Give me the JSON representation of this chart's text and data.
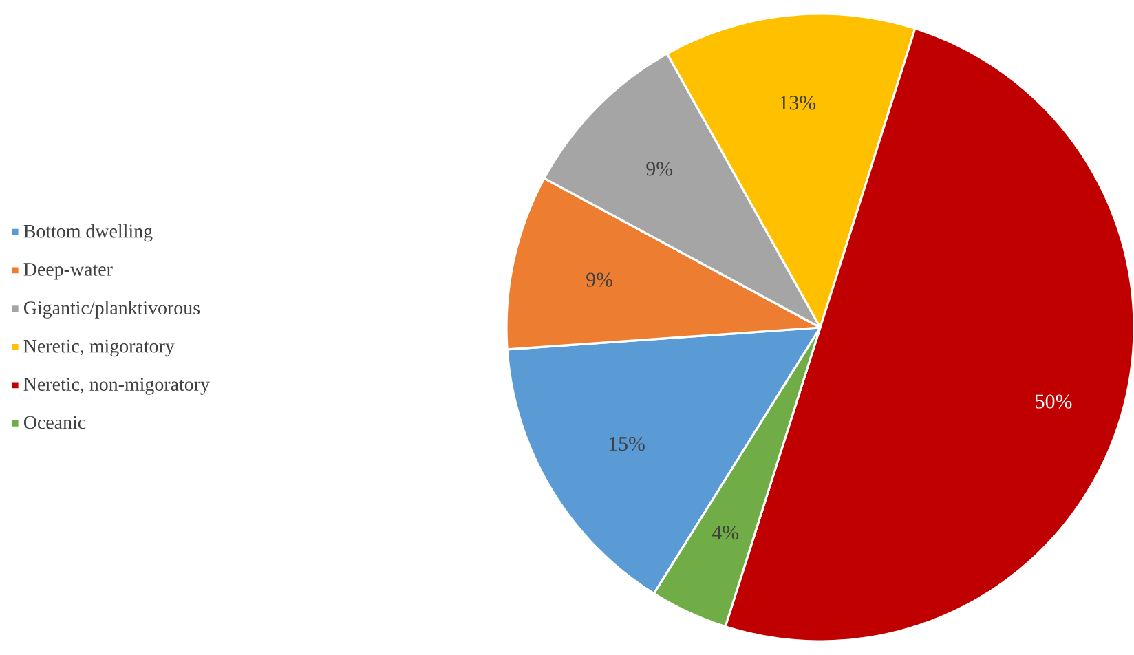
{
  "chart_data": {
    "type": "pie",
    "categories": [
      "Bottom dwelling",
      "Deep-water",
      "Gigantic/planktivorous",
      "Neretic, migoratory",
      "Neretic, non-migoratory",
      "Oceanic"
    ],
    "values": [
      15,
      9,
      9,
      13,
      50,
      4
    ],
    "colors": [
      "#5b9bd5",
      "#ed7d31",
      "#a5a5a5",
      "#ffc000",
      "#c00000",
      "#70ad47"
    ],
    "value_labels": [
      "15%",
      "9%",
      "9%",
      "13%",
      "50%",
      "4%"
    ],
    "legend": "left"
  }
}
